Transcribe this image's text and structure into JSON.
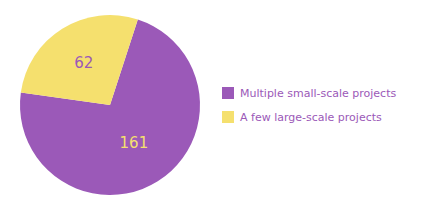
{
  "chart_data": {
    "type": "pie",
    "categories": [
      "Multiple small-scale projects",
      "A few large-scale projects"
    ],
    "values": [
      161,
      62
    ],
    "colors": [
      "#9b59b8",
      "#f5e06e"
    ],
    "data_labels": true,
    "legend": "right"
  }
}
